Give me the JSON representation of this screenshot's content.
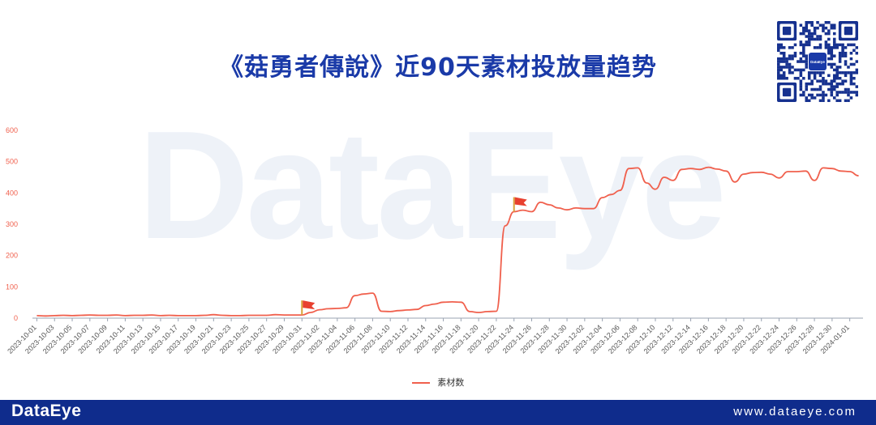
{
  "header": {
    "title": "《菇勇者傳說》近90天素材投放量趋势"
  },
  "watermark": "DataEye",
  "footer": {
    "logo": "DataEye",
    "url": "www.dataeye.com"
  },
  "qr_center_label": "DataEye",
  "colors": {
    "line": "#f0604d",
    "title": "#1a3aa8",
    "footer": "#0f2c8c",
    "flag": "#e8402f",
    "axis_text": "#f0604d"
  },
  "chart_data": {
    "type": "line",
    "title": "",
    "xlabel": "",
    "ylabel": "",
    "ylim": [
      0,
      600
    ],
    "yticks": [
      0,
      100,
      200,
      300,
      400,
      500,
      600
    ],
    "x": [
      "2023-10-01",
      "2023-10-02",
      "2023-10-03",
      "2023-10-04",
      "2023-10-05",
      "2023-10-06",
      "2023-10-07",
      "2023-10-08",
      "2023-10-09",
      "2023-10-10",
      "2023-10-11",
      "2023-10-12",
      "2023-10-13",
      "2023-10-14",
      "2023-10-15",
      "2023-10-16",
      "2023-10-17",
      "2023-10-18",
      "2023-10-19",
      "2023-10-20",
      "2023-10-21",
      "2023-10-22",
      "2023-10-23",
      "2023-10-24",
      "2023-10-25",
      "2023-10-26",
      "2023-10-27",
      "2023-10-28",
      "2023-10-29",
      "2023-10-30",
      "2023-10-31",
      "2023-11-01",
      "2023-11-02",
      "2023-11-03",
      "2023-11-04",
      "2023-11-05",
      "2023-11-06",
      "2023-11-07",
      "2023-11-08",
      "2023-11-09",
      "2023-11-10",
      "2023-11-11",
      "2023-11-12",
      "2023-11-13",
      "2023-11-14",
      "2023-11-15",
      "2023-11-16",
      "2023-11-17",
      "2023-11-18",
      "2023-11-19",
      "2023-11-20",
      "2023-11-21",
      "2023-11-22",
      "2023-11-23",
      "2023-11-24",
      "2023-11-25",
      "2023-11-26",
      "2023-11-27",
      "2023-11-28",
      "2023-11-29",
      "2023-11-30",
      "2023-12-01",
      "2023-12-02",
      "2023-12-03",
      "2023-12-04",
      "2023-12-05",
      "2023-12-06",
      "2023-12-07",
      "2023-12-08",
      "2023-12-09",
      "2023-12-10",
      "2023-12-11",
      "2023-12-12",
      "2023-12-13",
      "2023-12-14",
      "2023-12-15",
      "2023-12-16",
      "2023-12-17",
      "2023-12-18",
      "2023-12-19",
      "2023-12-20",
      "2023-12-21",
      "2023-12-22",
      "2023-12-23",
      "2023-12-24",
      "2023-12-25",
      "2023-12-26",
      "2023-12-27",
      "2023-12-28",
      "2023-12-29",
      "2023-12-30",
      "2023-12-31",
      "2024-01-01",
      "2024-01-02"
    ],
    "x_tick_labels": [
      "2023-10-01",
      "2023-10-03",
      "2023-10-05",
      "2023-10-07",
      "2023-10-09",
      "2023-10-11",
      "2023-10-13",
      "2023-10-15",
      "2023-10-17",
      "2023-10-19",
      "2023-10-21",
      "2023-10-23",
      "2023-10-25",
      "2023-10-27",
      "2023-10-29",
      "2023-10-31",
      "2023-11-02",
      "2023-11-04",
      "2023-11-06",
      "2023-11-08",
      "2023-11-10",
      "2023-11-12",
      "2023-11-14",
      "2023-11-16",
      "2023-11-18",
      "2023-11-20",
      "2023-11-22",
      "2023-11-24",
      "2023-11-26",
      "2023-11-28",
      "2023-11-30",
      "2023-12-02",
      "2023-12-04",
      "2023-12-06",
      "2023-12-08",
      "2023-12-10",
      "2023-12-12",
      "2023-12-14",
      "2023-12-16",
      "2023-12-18",
      "2023-12-20",
      "2023-12-22",
      "2023-12-24",
      "2023-12-26",
      "2023-12-28",
      "2023-12-30",
      "2024-01-01"
    ],
    "series": [
      {
        "name": "素材数",
        "values": [
          8,
          7,
          8,
          9,
          8,
          9,
          10,
          9,
          9,
          10,
          8,
          9,
          9,
          10,
          8,
          9,
          8,
          8,
          8,
          9,
          11,
          9,
          8,
          8,
          9,
          9,
          9,
          11,
          10,
          10,
          10,
          18,
          27,
          30,
          31,
          33,
          72,
          77,
          80,
          22,
          21,
          24,
          26,
          28,
          40,
          45,
          51,
          52,
          51,
          21,
          18,
          21,
          22,
          295,
          340,
          345,
          340,
          370,
          362,
          352,
          346,
          352,
          350,
          350,
          385,
          395,
          408,
          478,
          480,
          432,
          412,
          450,
          440,
          475,
          478,
          475,
          482,
          476,
          470,
          435,
          460,
          465,
          466,
          460,
          448,
          468,
          468,
          470,
          440,
          480,
          478,
          470,
          468,
          455
        ]
      }
    ],
    "flags": [
      {
        "x": "2023-10-31",
        "y": 10
      },
      {
        "x": "2023-11-24",
        "y": 340
      }
    ],
    "grid": false,
    "legend": "bottom-center"
  }
}
